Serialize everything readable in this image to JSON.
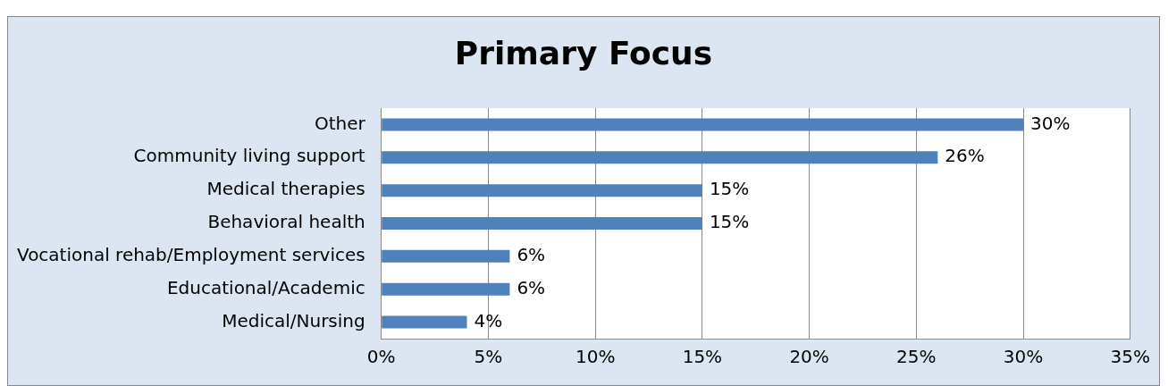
{
  "chart_data": {
    "type": "bar",
    "orientation": "horizontal",
    "title": "Primary Focus",
    "categories": [
      "Other",
      "Community living support",
      "Medical therapies",
      "Behavioral health",
      "Vocational rehab/Employment services",
      "Educational/Academic",
      "Medical/Nursing"
    ],
    "values": [
      30,
      26,
      15,
      15,
      6,
      6,
      4
    ],
    "value_labels": [
      "30%",
      "26%",
      "15%",
      "15%",
      "6%",
      "6%",
      "4%"
    ],
    "color": "#4f81bd",
    "xlim": [
      0,
      35
    ],
    "xticks": [
      {
        "value": 0,
        "label": "0%"
      },
      {
        "value": 5,
        "label": "5%"
      },
      {
        "value": 10,
        "label": "10%"
      },
      {
        "value": 15,
        "label": "15%"
      },
      {
        "value": 20,
        "label": "20%"
      },
      {
        "value": 25,
        "label": "25%"
      },
      {
        "value": 30,
        "label": "30%"
      },
      {
        "value": 35,
        "label": "35%"
      }
    ],
    "grid": "x",
    "legend": false
  }
}
